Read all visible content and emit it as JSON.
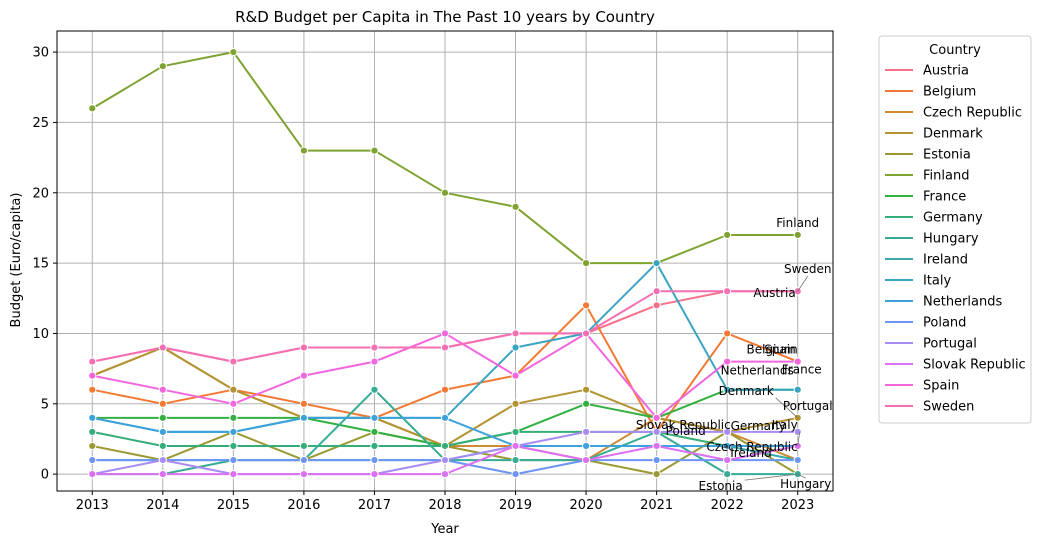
{
  "chart_data": {
    "type": "line",
    "title": "R&D Budget per Capita in The Past 10 years by Country",
    "xlabel": "Year",
    "ylabel": "Budget (Euro/capita)",
    "x": [
      2013,
      2014,
      2015,
      2016,
      2017,
      2018,
      2019,
      2020,
      2021,
      2022,
      2023
    ],
    "xlim": [
      2012.5,
      2023.5
    ],
    "ylim": [
      -1.2,
      31.5
    ],
    "yticks": [
      0,
      5,
      10,
      15,
      20,
      25,
      30
    ],
    "grid": true,
    "legend": {
      "title": "Country",
      "placement": "outside-right"
    },
    "series": [
      {
        "name": "Austria",
        "color": "#f77189",
        "values": [
          8,
          9,
          8,
          9,
          9,
          9,
          10,
          10,
          12,
          13,
          13
        ]
      },
      {
        "name": "Belgium",
        "color": "#f37932",
        "values": [
          6,
          5,
          6,
          5,
          4,
          6,
          7,
          12,
          3,
          10,
          8
        ]
      },
      {
        "name": "Czech Republic",
        "color": "#cf8a32",
        "values": [
          7,
          9,
          6,
          4,
          4,
          2,
          2,
          1,
          4,
          3,
          1
        ]
      },
      {
        "name": "Denmark",
        "color": "#b39432",
        "values": [
          7,
          9,
          6,
          4,
          4,
          2,
          5,
          6,
          4,
          3,
          4
        ]
      },
      {
        "name": "Estonia",
        "color": "#9b9a32",
        "values": [
          2,
          1,
          3,
          1,
          3,
          2,
          1,
          1,
          0,
          3,
          0
        ]
      },
      {
        "name": "Finland",
        "color": "#7ea331",
        "values": [
          26,
          29,
          30,
          23,
          23,
          20,
          19,
          15,
          15,
          17,
          17
        ]
      },
      {
        "name": "France",
        "color": "#33b040",
        "values": [
          4,
          4,
          4,
          4,
          3,
          2,
          3,
          5,
          4,
          6,
          6
        ]
      },
      {
        "name": "Germany",
        "color": "#35ad78",
        "values": [
          3,
          2,
          2,
          2,
          2,
          2,
          3,
          3,
          3,
          2,
          2
        ]
      },
      {
        "name": "Hungary",
        "color": "#36ab95",
        "values": [
          0,
          0,
          1,
          1,
          6,
          1,
          1,
          1,
          3,
          0,
          0
        ]
      },
      {
        "name": "Ireland",
        "color": "#38a8aa",
        "values": [
          1,
          1,
          1,
          1,
          1,
          1,
          2,
          2,
          2,
          2,
          1
        ]
      },
      {
        "name": "Italy",
        "color": "#3aa5c1",
        "values": [
          4,
          3,
          3,
          4,
          4,
          4,
          9,
          10,
          15,
          6,
          6
        ]
      },
      {
        "name": "Netherlands",
        "color": "#3ba2dc",
        "values": [
          4,
          3,
          3,
          4,
          4,
          4,
          2,
          2,
          2,
          2,
          2
        ]
      },
      {
        "name": "Poland",
        "color": "#6e95f4",
        "values": [
          1,
          1,
          1,
          1,
          1,
          1,
          0,
          1,
          1,
          1,
          1
        ]
      },
      {
        "name": "Portugal",
        "color": "#a98bf4",
        "values": [
          0,
          1,
          0,
          0,
          0,
          1,
          2,
          3,
          3,
          3,
          3
        ]
      },
      {
        "name": "Slovak Republic",
        "color": "#dd6ff3",
        "values": [
          0,
          0,
          0,
          0,
          0,
          0,
          2,
          1,
          2,
          1,
          2
        ]
      },
      {
        "name": "Spain",
        "color": "#f366de",
        "values": [
          7,
          6,
          5,
          7,
          8,
          10,
          7,
          10,
          4,
          8,
          8
        ]
      },
      {
        "name": "Sweden",
        "color": "#f46fb3",
        "values": [
          8,
          9,
          8,
          9,
          9,
          9,
          10,
          10,
          13,
          13,
          13
        ]
      }
    ],
    "annotations": [
      {
        "text": "Finland",
        "x": 2023,
        "y": 17
      },
      {
        "text": "Sweden",
        "x": 2023,
        "y": 13
      },
      {
        "text": "Austria",
        "x": 2023,
        "y": 13
      },
      {
        "text": "Belgium",
        "x": 2023,
        "y": 8
      },
      {
        "text": "Spain",
        "x": 2023,
        "y": 8
      },
      {
        "text": "France",
        "x": 2023,
        "y": 6
      },
      {
        "text": "Netherlands",
        "x": 2023,
        "y": 6
      },
      {
        "text": "Denmark",
        "x": 2023,
        "y": 4
      },
      {
        "text": "Portugal",
        "x": 2023,
        "y": 4
      },
      {
        "text": "Italy",
        "x": 2023,
        "y": 2
      },
      {
        "text": "Slovak Republic",
        "x": 2023,
        "y": 2
      },
      {
        "text": "Poland",
        "x": 2023,
        "y": 1
      },
      {
        "text": "Germany",
        "x": 2023,
        "y": 2
      },
      {
        "text": "Czech Republic",
        "x": 2023,
        "y": 1
      },
      {
        "text": "Ireland",
        "x": 2023,
        "y": 1
      },
      {
        "text": "Estonia",
        "x": 2023,
        "y": 0
      },
      {
        "text": "Hungary",
        "x": 2023,
        "y": 0
      }
    ]
  }
}
